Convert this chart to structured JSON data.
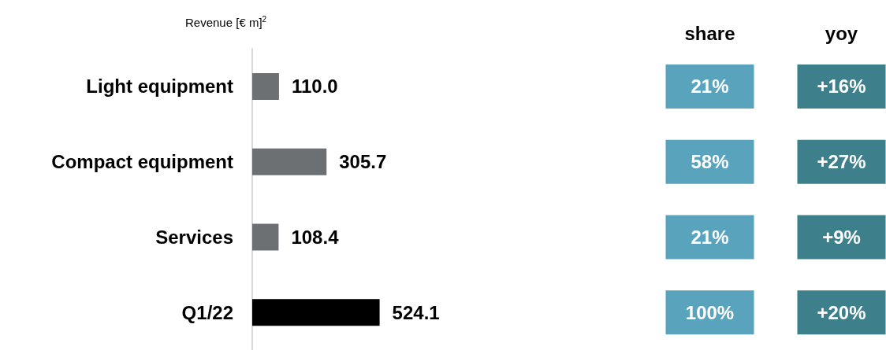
{
  "chart_data": [
    {
      "type": "bar",
      "orientation": "horizontal",
      "title": "Revenue [€ m]$^{2}$",
      "categories": [
        "Light equipment",
        "Compact equipment",
        "Services",
        "Q1/22"
      ],
      "values": [
        110.0,
        305.7,
        108.4,
        524.1
      ],
      "colors": [
        "#6d7073",
        "#6d7073",
        "#6d7073",
        "#000000"
      ],
      "value_labels": [
        "110.0",
        "305.7",
        "108.4",
        "524.1"
      ],
      "grid": false
    },
    {
      "type": "heatmap",
      "categories": [
        "share",
        "yoy"
      ],
      "y_categories": [
        null,
        null,
        null,
        null
      ],
      "cells": [
        [
          21,
          16
        ],
        [
          58,
          27
        ],
        [
          21,
          9
        ],
        [
          100,
          20
        ]
      ],
      "cell_labels": [
        [
          "21%",
          "+16%"
        ],
        [
          "58%",
          "+27%"
        ],
        [
          "21%",
          "+9%"
        ],
        [
          "100%",
          "+20%"
        ]
      ],
      "colors": [
        "#5aa3bd",
        "#3e7f8c"
      ],
      "tick_labels": "x"
    }
  ]
}
